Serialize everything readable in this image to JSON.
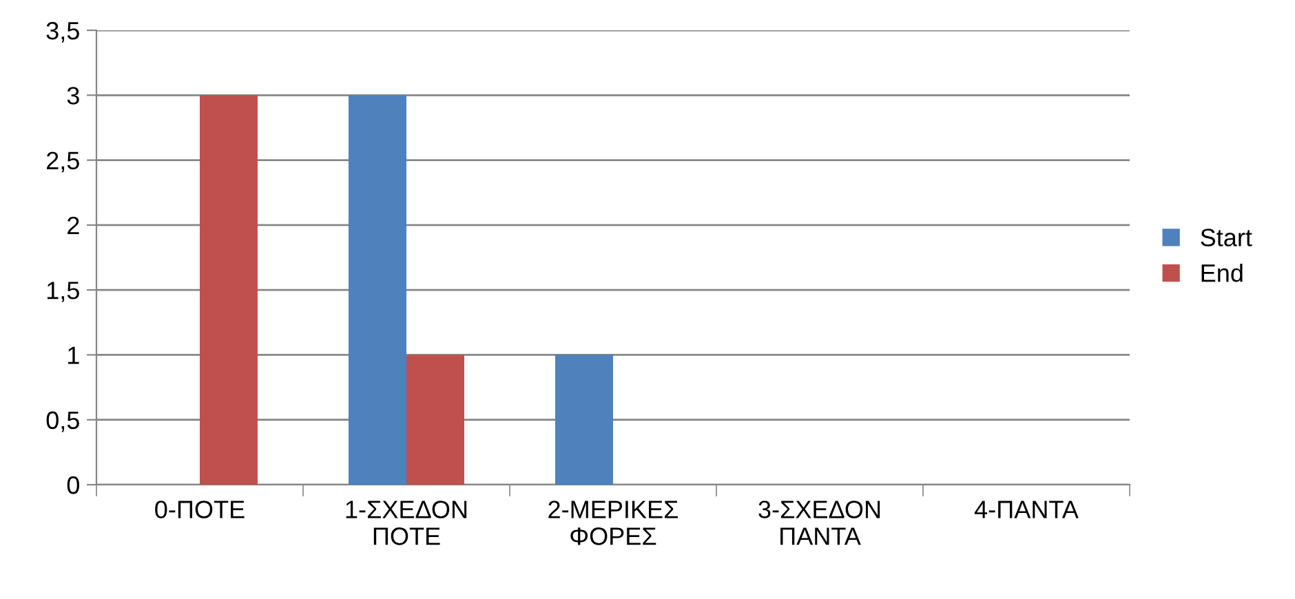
{
  "chart_data": {
    "type": "bar",
    "categories": [
      "0-ΠΟΤΕ",
      "1-ΣΧΕΔΟΝ\nΠΟΤΕ",
      "2-ΜΕΡΙΚΕΣ\nΦΟΡΕΣ",
      "3-ΣΧΕΔΟΝ\nΠΑΝΤΑ",
      "4-ΠΑΝΤΑ"
    ],
    "series": [
      {
        "name": "Start",
        "color": "#4f81bd",
        "values": [
          0,
          3,
          1,
          0,
          0
        ]
      },
      {
        "name": "End",
        "color": "#c0504d",
        "values": [
          3,
          1,
          0,
          0,
          0
        ]
      }
    ],
    "ylim": [
      0,
      3.5
    ],
    "yticks": [
      0,
      {
        "value": 0.5,
        "label": "0,5"
      },
      1,
      {
        "value": 1.5,
        "label": "1,5"
      },
      2,
      {
        "value": 2.5,
        "label": "2,5"
      },
      3,
      {
        "value": 3.5,
        "label": "3,5"
      }
    ],
    "grid": "y",
    "legend": "right"
  }
}
